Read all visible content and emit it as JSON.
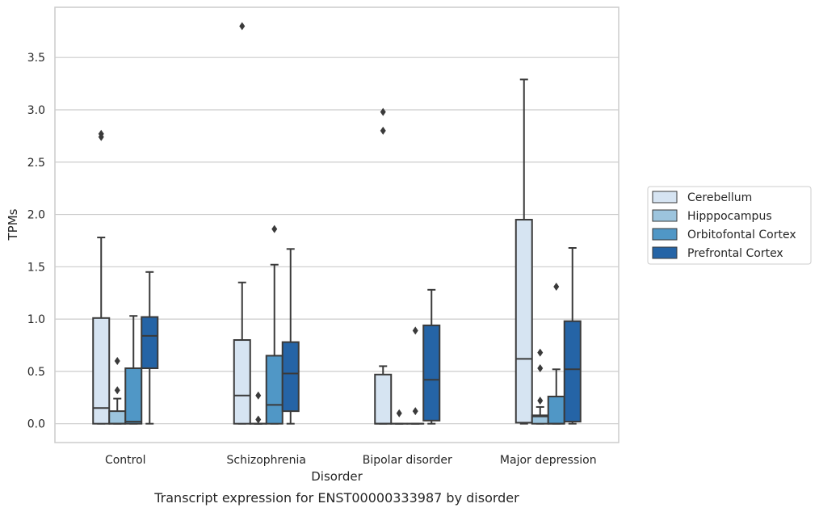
{
  "chart_data": {
    "type": "box",
    "caption": "Transcript expression for ENST00000333987 by disorder",
    "xlabel": "Disorder",
    "ylabel": "TPMs",
    "ylim": [
      -0.18,
      3.98
    ],
    "yticks": [
      "0.0",
      "0.5",
      "1.0",
      "1.5",
      "2.0",
      "2.5",
      "3.0",
      "3.5"
    ],
    "grid": "horizontal",
    "legend_position": "right",
    "categories": [
      "Control",
      "Schizophrenia",
      "Bipolar disorder",
      "Major depression"
    ],
    "series": [
      {
        "name": "Cerebellum",
        "color": "#d6e4f2",
        "boxes": [
          {
            "whisker_low": 0.0,
            "q1": 0.0,
            "median": 0.15,
            "q3": 1.01,
            "whisker_high": 1.78,
            "outliers": [
              2.74,
              2.77
            ]
          },
          {
            "whisker_low": 0.0,
            "q1": 0.0,
            "median": 0.27,
            "q3": 0.8,
            "whisker_high": 1.35,
            "outliers": [
              3.8
            ]
          },
          {
            "whisker_low": 0.0,
            "q1": 0.0,
            "median": 0.0,
            "q3": 0.47,
            "whisker_high": 0.55,
            "outliers": [
              2.8,
              2.98
            ]
          },
          {
            "whisker_low": 0.0,
            "q1": 0.01,
            "median": 0.62,
            "q3": 1.95,
            "whisker_high": 3.29,
            "outliers": []
          }
        ]
      },
      {
        "name": "Hipppocampus",
        "color": "#9cc4dd",
        "boxes": [
          {
            "whisker_low": 0.0,
            "q1": 0.0,
            "median": 0.0,
            "q3": 0.12,
            "whisker_high": 0.24,
            "outliers": [
              0.32,
              0.6
            ]
          },
          {
            "whisker_low": 0.0,
            "q1": 0.0,
            "median": 0.0,
            "q3": 0.0,
            "whisker_high": 0.0,
            "outliers": [
              0.04,
              0.27
            ]
          },
          {
            "whisker_low": 0.0,
            "q1": 0.0,
            "median": 0.0,
            "q3": 0.0,
            "whisker_high": 0.0,
            "outliers": [
              0.1
            ]
          },
          {
            "whisker_low": 0.0,
            "q1": 0.0,
            "median": 0.07,
            "q3": 0.08,
            "whisker_high": 0.16,
            "outliers": [
              0.22,
              0.53,
              0.68
            ]
          }
        ]
      },
      {
        "name": "Orbitofontal Cortex",
        "color": "#5097c6",
        "boxes": [
          {
            "whisker_low": 0.0,
            "q1": 0.0,
            "median": 0.02,
            "q3": 0.53,
            "whisker_high": 1.03,
            "outliers": []
          },
          {
            "whisker_low": 0.0,
            "q1": 0.0,
            "median": 0.18,
            "q3": 0.65,
            "whisker_high": 1.52,
            "outliers": [
              1.86
            ]
          },
          {
            "whisker_low": 0.0,
            "q1": 0.0,
            "median": 0.0,
            "q3": 0.0,
            "whisker_high": 0.0,
            "outliers": [
              0.12,
              0.89
            ]
          },
          {
            "whisker_low": 0.0,
            "q1": 0.0,
            "median": 0.0,
            "q3": 0.26,
            "whisker_high": 0.52,
            "outliers": [
              1.31
            ]
          }
        ]
      },
      {
        "name": "Prefrontal Cortex",
        "color": "#2564a6",
        "boxes": [
          {
            "whisker_low": 0.0,
            "q1": 0.53,
            "median": 0.84,
            "q3": 1.02,
            "whisker_high": 1.45,
            "outliers": []
          },
          {
            "whisker_low": 0.0,
            "q1": 0.12,
            "median": 0.48,
            "q3": 0.78,
            "whisker_high": 1.67,
            "outliers": []
          },
          {
            "whisker_low": 0.0,
            "q1": 0.03,
            "median": 0.42,
            "q3": 0.94,
            "whisker_high": 1.28,
            "outliers": []
          },
          {
            "whisker_low": 0.0,
            "q1": 0.02,
            "median": 0.52,
            "q3": 0.98,
            "whisker_high": 1.68,
            "outliers": []
          }
        ]
      }
    ]
  }
}
